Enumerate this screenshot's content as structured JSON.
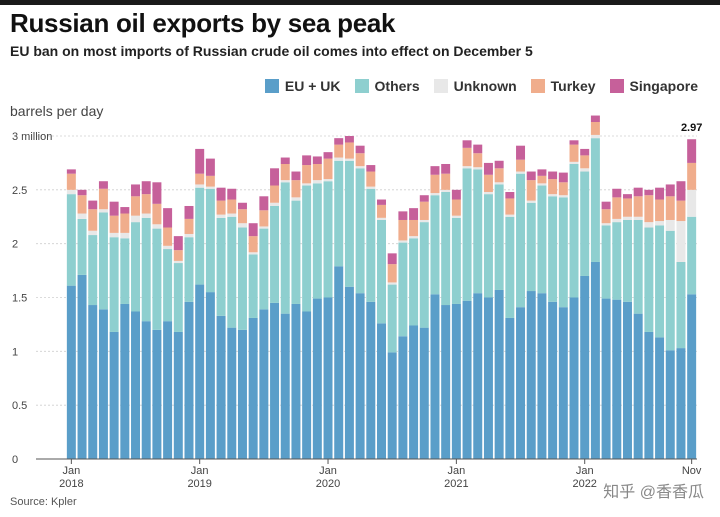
{
  "header": {
    "title": "Russian oil exports by sea peak",
    "subtitle": "EU ban on most imports of Russian crude oil comes into effect on December 5"
  },
  "source": "Source: Kpler",
  "watermark": "知乎 @香香瓜",
  "legend": [
    {
      "name": "EU + UK",
      "color": "#5a9ec9"
    },
    {
      "name": "Others",
      "color": "#8ecfcf"
    },
    {
      "name": "Unknown",
      "color": "#e8e8e8"
    },
    {
      "name": "Turkey",
      "color": "#f0ad8c"
    },
    {
      "name": "Singapore",
      "color": "#c6609a"
    }
  ],
  "chart_data": {
    "type": "bar",
    "stacked": true,
    "ylabel": "barrels per day",
    "ylim": [
      0,
      3
    ],
    "yticks": [
      {
        "value": 0,
        "label": "0"
      },
      {
        "value": 0.5,
        "label": "0.5"
      },
      {
        "value": 1,
        "label": "1"
      },
      {
        "value": 1.5,
        "label": "1.5"
      },
      {
        "value": 2,
        "label": "2"
      },
      {
        "value": 2.5,
        "label": "2.5"
      },
      {
        "value": 3,
        "label": "3 million"
      }
    ],
    "xticks": [
      {
        "index": 0,
        "month": "Jan",
        "year": "2018"
      },
      {
        "index": 12,
        "month": "Jan",
        "year": "2019"
      },
      {
        "index": 24,
        "month": "Jan",
        "year": "2020"
      },
      {
        "index": 36,
        "month": "Jan",
        "year": "2021"
      },
      {
        "index": 48,
        "month": "Jan",
        "year": "2022"
      },
      {
        "index": 58,
        "month": "Nov",
        "year": ""
      }
    ],
    "annotation": {
      "index": 58,
      "label": "2.97"
    },
    "series": [
      {
        "name": "EU + UK",
        "color": "#5a9ec9",
        "values": [
          1.61,
          1.71,
          1.43,
          1.39,
          1.18,
          1.44,
          1.37,
          1.28,
          1.2,
          1.28,
          1.18,
          1.46,
          1.62,
          1.55,
          1.33,
          1.22,
          1.2,
          1.31,
          1.39,
          1.45,
          1.35,
          1.44,
          1.37,
          1.49,
          1.5,
          1.79,
          1.6,
          1.54,
          1.46,
          1.26,
          0.99,
          1.14,
          1.24,
          1.22,
          1.53,
          1.43,
          1.44,
          1.47,
          1.54,
          1.5,
          1.57,
          1.31,
          1.41,
          1.56,
          1.54,
          1.46,
          1.41,
          1.5,
          1.7,
          1.83,
          1.49,
          1.48,
          1.46,
          1.35,
          1.18,
          1.13,
          1.01,
          1.03,
          1.53
        ]
      },
      {
        "name": "Others",
        "color": "#8ecfcf",
        "values": [
          0.85,
          0.52,
          0.65,
          0.9,
          0.88,
          0.61,
          0.83,
          0.96,
          0.94,
          0.67,
          0.64,
          0.6,
          0.9,
          0.96,
          0.91,
          1.03,
          0.95,
          0.59,
          0.75,
          0.9,
          1.22,
          0.96,
          1.17,
          1.07,
          1.08,
          0.98,
          1.17,
          1.16,
          1.05,
          0.96,
          0.63,
          0.87,
          0.81,
          0.98,
          0.92,
          1.05,
          0.8,
          1.23,
          1.15,
          0.96,
          0.98,
          0.94,
          1.24,
          0.82,
          1.0,
          0.98,
          1.02,
          1.24,
          0.97,
          1.15,
          0.68,
          0.72,
          0.76,
          0.87,
          0.97,
          1.04,
          1.11,
          0.8,
          0.72
        ]
      },
      {
        "name": "Unknown",
        "color": "#e8e8e8",
        "values": [
          0.04,
          0.05,
          0.04,
          0.03,
          0.04,
          0.05,
          0.06,
          0.04,
          0.04,
          0.03,
          0.02,
          0.03,
          0.03,
          0.02,
          0.03,
          0.03,
          0.04,
          0.02,
          0.02,
          0.03,
          0.02,
          0.03,
          0.02,
          0.03,
          0.02,
          0.03,
          0.02,
          0.02,
          0.02,
          0.02,
          0.02,
          0.02,
          0.02,
          0.02,
          0.02,
          0.02,
          0.02,
          0.02,
          0.02,
          0.02,
          0.02,
          0.02,
          0.02,
          0.02,
          0.02,
          0.02,
          0.02,
          0.02,
          0.03,
          0.03,
          0.02,
          0.03,
          0.03,
          0.03,
          0.05,
          0.04,
          0.1,
          0.38,
          0.25
        ]
      },
      {
        "name": "Turkey",
        "color": "#f0ad8c",
        "values": [
          0.15,
          0.17,
          0.2,
          0.19,
          0.16,
          0.18,
          0.18,
          0.18,
          0.19,
          0.17,
          0.1,
          0.14,
          0.1,
          0.1,
          0.13,
          0.13,
          0.13,
          0.15,
          0.15,
          0.16,
          0.15,
          0.16,
          0.17,
          0.15,
          0.19,
          0.12,
          0.15,
          0.12,
          0.14,
          0.12,
          0.17,
          0.19,
          0.15,
          0.17,
          0.17,
          0.15,
          0.15,
          0.17,
          0.13,
          0.16,
          0.13,
          0.15,
          0.11,
          0.19,
          0.07,
          0.14,
          0.12,
          0.16,
          0.12,
          0.12,
          0.13,
          0.2,
          0.17,
          0.19,
          0.25,
          0.2,
          0.22,
          0.19,
          0.25
        ]
      },
      {
        "name": "Singapore",
        "color": "#c6609a",
        "values": [
          0.04,
          0.05,
          0.08,
          0.07,
          0.13,
          0.06,
          0.11,
          0.12,
          0.2,
          0.18,
          0.13,
          0.12,
          0.23,
          0.16,
          0.12,
          0.1,
          0.06,
          0.12,
          0.13,
          0.16,
          0.06,
          0.08,
          0.09,
          0.07,
          0.06,
          0.06,
          0.06,
          0.07,
          0.06,
          0.05,
          0.1,
          0.08,
          0.11,
          0.06,
          0.08,
          0.09,
          0.09,
          0.07,
          0.08,
          0.11,
          0.07,
          0.06,
          0.13,
          0.08,
          0.06,
          0.07,
          0.09,
          0.04,
          0.06,
          0.06,
          0.07,
          0.08,
          0.04,
          0.08,
          0.05,
          0.11,
          0.11,
          0.18,
          0.22
        ]
      }
    ]
  }
}
